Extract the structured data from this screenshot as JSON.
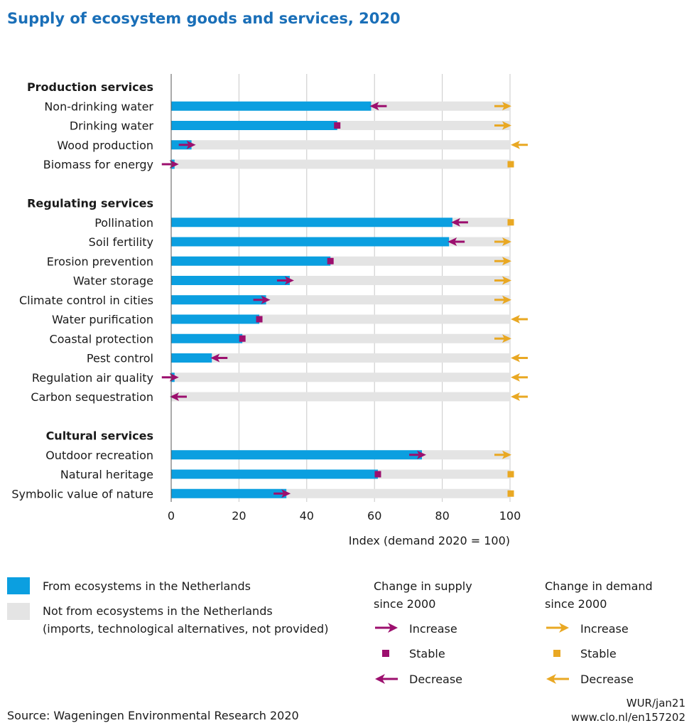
{
  "title": "Supply of ecosystem goods and services, 2020",
  "colors": {
    "supply": "#0b9fe0",
    "gap": "#e4e4e4",
    "supply_change": "#9c0f6e",
    "demand_change": "#e9a823",
    "grid": "#c8c8c8"
  },
  "chart_data": {
    "type": "bar",
    "orientation": "horizontal",
    "xlabel": "Index (demand 2020 = 100)",
    "xlim": [
      0,
      100
    ],
    "xticks": [
      "0",
      "20",
      "40",
      "60",
      "80",
      "100"
    ],
    "grid": "vertical",
    "groups": [
      {
        "name": "Production services",
        "items": [
          {
            "label": "Non-drinking water",
            "value": 59,
            "supply_change": "decrease",
            "demand_change": "increase"
          },
          {
            "label": "Drinking water",
            "value": 49,
            "supply_change": "stable",
            "demand_change": "increase"
          },
          {
            "label": "Wood production",
            "value": 6,
            "supply_change": "increase",
            "demand_change": "decrease"
          },
          {
            "label": "Biomass for energy",
            "value": 1,
            "supply_change": "increase",
            "demand_change": "stable"
          }
        ]
      },
      {
        "name": "Regulating services",
        "items": [
          {
            "label": "Pollination",
            "value": 83,
            "supply_change": "decrease",
            "demand_change": "stable"
          },
          {
            "label": "Soil fertility",
            "value": 82,
            "supply_change": "decrease",
            "demand_change": "increase"
          },
          {
            "label": "Erosion prevention",
            "value": 47,
            "supply_change": "stable",
            "demand_change": "increase"
          },
          {
            "label": "Water storage",
            "value": 35,
            "supply_change": "increase",
            "demand_change": "increase"
          },
          {
            "label": "Climate control in cities",
            "value": 28,
            "supply_change": "increase",
            "demand_change": "increase"
          },
          {
            "label": "Water purification",
            "value": 26,
            "supply_change": "stable",
            "demand_change": "decrease"
          },
          {
            "label": "Coastal protection",
            "value": 21,
            "supply_change": "stable",
            "demand_change": "increase"
          },
          {
            "label": "Pest control",
            "value": 12,
            "supply_change": "decrease",
            "demand_change": "decrease"
          },
          {
            "label": "Regulation air quality",
            "value": 1,
            "supply_change": "increase",
            "demand_change": "decrease"
          },
          {
            "label": "Carbon sequestration",
            "value": 0,
            "supply_change": "decrease",
            "demand_change": "decrease"
          }
        ]
      },
      {
        "name": "Cultural services",
        "items": [
          {
            "label": "Outdoor recreation",
            "value": 74,
            "supply_change": "increase",
            "demand_change": "increase"
          },
          {
            "label": "Natural heritage",
            "value": 61,
            "supply_change": "stable",
            "demand_change": "stable"
          },
          {
            "label": "Symbolic value of nature",
            "value": 34,
            "supply_change": "increase",
            "demand_change": "stable"
          }
        ]
      }
    ]
  },
  "legend": {
    "supply_label": "From ecosystems in the Netherlands",
    "gap_label_1": "Not from ecosystems in the Netherlands",
    "gap_label_2": "(imports, technological alternatives, not provided)",
    "supply_change_title_1": "Change in supply",
    "supply_change_title_2": "since 2000",
    "demand_change_title_1": "Change in demand",
    "demand_change_title_2": "since 2000",
    "increase": "Increase",
    "stable": "Stable",
    "decrease": "Decrease"
  },
  "footer": {
    "source": "Source: Wageningen Environmental Research 2020",
    "credit": "WUR/jan21",
    "url": "www.clo.nl/en157202"
  }
}
